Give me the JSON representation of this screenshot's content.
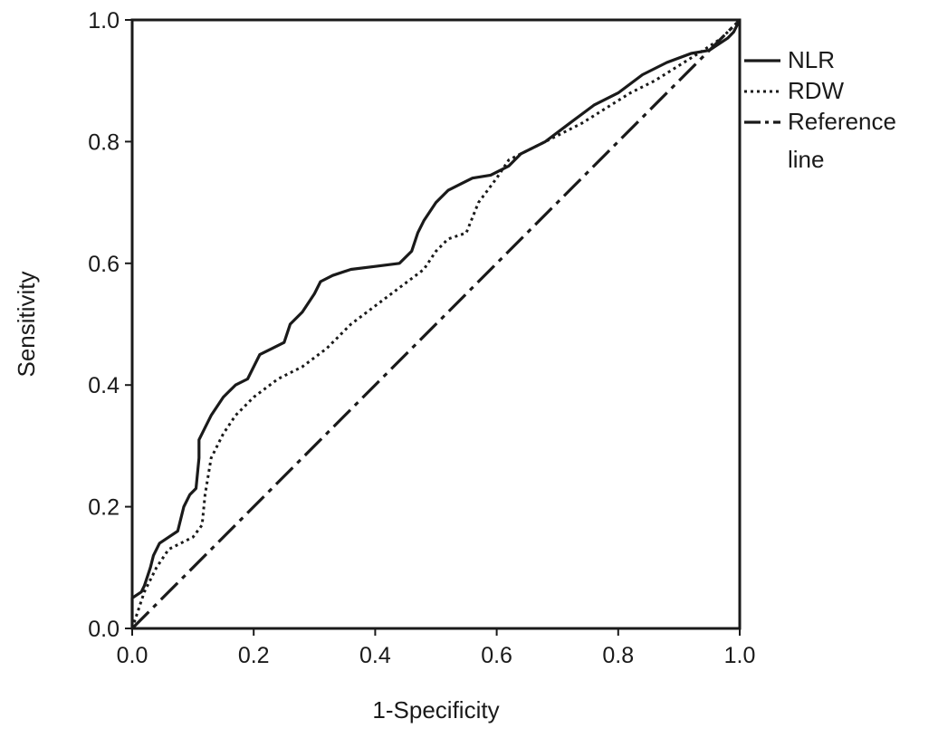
{
  "chart_data": {
    "type": "line",
    "title": "",
    "xlabel": "1-Specificity",
    "ylabel": "Sensitivity",
    "xlim": [
      0,
      1
    ],
    "ylim": [
      0,
      1
    ],
    "x_ticks": [
      "0.0",
      "0.2",
      "0.4",
      "0.6",
      "0.8",
      "1.0"
    ],
    "y_ticks": [
      "0.0",
      "0.2",
      "0.4",
      "0.6",
      "0.8",
      "1.0"
    ],
    "grid": false,
    "legend_position": "right-top outside plot",
    "series": [
      {
        "name": "NLR",
        "style": "solid",
        "color": "#1a1a1a",
        "x": [
          0.0,
          0.0,
          0.015,
          0.02,
          0.03,
          0.035,
          0.045,
          0.06,
          0.075,
          0.085,
          0.095,
          0.105,
          0.11,
          0.11,
          0.12,
          0.13,
          0.15,
          0.17,
          0.19,
          0.2,
          0.21,
          0.23,
          0.25,
          0.26,
          0.28,
          0.3,
          0.31,
          0.33,
          0.36,
          0.4,
          0.44,
          0.46,
          0.47,
          0.48,
          0.5,
          0.52,
          0.54,
          0.56,
          0.59,
          0.62,
          0.64,
          0.68,
          0.72,
          0.76,
          0.8,
          0.84,
          0.88,
          0.92,
          0.95,
          0.98,
          0.99,
          1.0
        ],
        "y": [
          0.0,
          0.05,
          0.06,
          0.07,
          0.1,
          0.12,
          0.14,
          0.15,
          0.16,
          0.2,
          0.22,
          0.23,
          0.28,
          0.31,
          0.33,
          0.35,
          0.38,
          0.4,
          0.41,
          0.43,
          0.45,
          0.46,
          0.47,
          0.5,
          0.52,
          0.55,
          0.57,
          0.58,
          0.59,
          0.595,
          0.6,
          0.62,
          0.65,
          0.67,
          0.7,
          0.72,
          0.73,
          0.74,
          0.745,
          0.76,
          0.78,
          0.8,
          0.83,
          0.86,
          0.88,
          0.91,
          0.93,
          0.945,
          0.95,
          0.97,
          0.98,
          1.0
        ]
      },
      {
        "name": "RDW",
        "style": "dotted",
        "color": "#1a1a1a",
        "x": [
          0.0,
          0.02,
          0.04,
          0.06,
          0.08,
          0.1,
          0.115,
          0.12,
          0.13,
          0.15,
          0.17,
          0.2,
          0.24,
          0.28,
          0.32,
          0.36,
          0.4,
          0.44,
          0.48,
          0.5,
          0.52,
          0.55,
          0.57,
          0.6,
          0.62,
          0.64,
          0.66,
          0.7,
          0.74,
          0.78,
          0.82,
          0.86,
          0.9,
          0.94,
          0.97,
          1.0
        ],
        "y": [
          0.0,
          0.06,
          0.1,
          0.13,
          0.14,
          0.15,
          0.17,
          0.22,
          0.28,
          0.32,
          0.35,
          0.38,
          0.41,
          0.43,
          0.46,
          0.5,
          0.53,
          0.56,
          0.59,
          0.62,
          0.64,
          0.65,
          0.7,
          0.74,
          0.77,
          0.78,
          0.79,
          0.81,
          0.83,
          0.855,
          0.88,
          0.9,
          0.925,
          0.95,
          0.97,
          1.0
        ]
      },
      {
        "name": "Reference line",
        "legend_lines": [
          "Reference",
          "line"
        ],
        "style": "dash-dot",
        "color": "#1a1a1a",
        "x": [
          0.0,
          1.0
        ],
        "y": [
          0.0,
          1.0
        ]
      }
    ]
  }
}
